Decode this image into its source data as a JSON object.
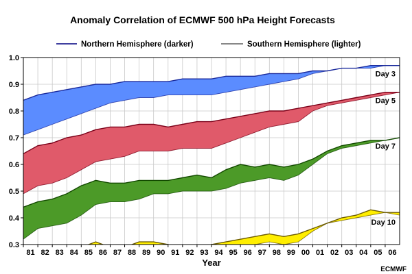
{
  "chart_data": {
    "type": "area",
    "title": "Anomaly Correlation of ECMWF 500 hPa Height Forecasts",
    "xlabel": "Year",
    "ylabel": "",
    "credit": "ECMWF",
    "legend": {
      "placement": "top",
      "entries": [
        {
          "label": "Northern Hemisphere (darker)",
          "color": "#000080"
        },
        {
          "label": "Southern Hemisphere (lighter)",
          "color": "#404040"
        }
      ]
    },
    "grid": true,
    "x_categories": [
      "81",
      "82",
      "83",
      "84",
      "85",
      "86",
      "87",
      "88",
      "89",
      "90",
      "91",
      "92",
      "93",
      "94",
      "95",
      "96",
      "97",
      "98",
      "99",
      "00",
      "01",
      "02",
      "03",
      "04",
      "05",
      "06"
    ],
    "xlim": [
      1981.0,
      2007.0
    ],
    "ylim": [
      0.3,
      1.0
    ],
    "yticks": [
      "0.3",
      "0.4",
      "0.5",
      "0.6",
      "0.7",
      "0.8",
      "0.9",
      "1.0"
    ],
    "series": [
      {
        "name": "Day 3",
        "fill": "#5b8cff",
        "edge": "#1a2a9c",
        "x": [
          1981.0,
          1982.0,
          1983.0,
          1984.0,
          1985.0,
          1986.0,
          1987.0,
          1988.0,
          1989.0,
          1990.0,
          1991.0,
          1992.0,
          1993.0,
          1994.0,
          1995.0,
          1996.0,
          1997.0,
          1998.0,
          1999.0,
          2000.0,
          2001.0,
          2002.0,
          2003.0,
          2004.0,
          2005.0,
          2006.0,
          2007.0
        ],
        "upper": [
          0.84,
          0.86,
          0.87,
          0.88,
          0.89,
          0.9,
          0.9,
          0.91,
          0.91,
          0.91,
          0.91,
          0.92,
          0.92,
          0.92,
          0.93,
          0.93,
          0.93,
          0.94,
          0.94,
          0.94,
          0.95,
          0.95,
          0.96,
          0.96,
          0.97,
          0.97,
          0.97
        ],
        "lower": [
          0.71,
          0.73,
          0.75,
          0.77,
          0.79,
          0.81,
          0.83,
          0.84,
          0.85,
          0.85,
          0.86,
          0.86,
          0.86,
          0.86,
          0.87,
          0.88,
          0.89,
          0.9,
          0.91,
          0.92,
          0.94,
          0.95,
          0.96,
          0.96,
          0.96,
          0.97,
          0.97
        ]
      },
      {
        "name": "Day 5",
        "fill": "#e05a6a",
        "edge": "#7a0018",
        "x": [
          1981.0,
          1982.0,
          1983.0,
          1984.0,
          1985.0,
          1986.0,
          1987.0,
          1988.0,
          1989.0,
          1990.0,
          1991.0,
          1992.0,
          1993.0,
          1994.0,
          1995.0,
          1996.0,
          1997.0,
          1998.0,
          1999.0,
          2000.0,
          2001.0,
          2002.0,
          2003.0,
          2004.0,
          2005.0,
          2006.0,
          2007.0
        ],
        "upper": [
          0.64,
          0.67,
          0.68,
          0.7,
          0.71,
          0.73,
          0.74,
          0.74,
          0.75,
          0.75,
          0.74,
          0.75,
          0.76,
          0.76,
          0.77,
          0.78,
          0.79,
          0.8,
          0.8,
          0.81,
          0.82,
          0.83,
          0.84,
          0.85,
          0.86,
          0.87,
          0.87
        ],
        "lower": [
          0.49,
          0.52,
          0.53,
          0.55,
          0.58,
          0.61,
          0.62,
          0.63,
          0.65,
          0.65,
          0.65,
          0.66,
          0.66,
          0.66,
          0.68,
          0.7,
          0.72,
          0.74,
          0.75,
          0.76,
          0.8,
          0.82,
          0.83,
          0.84,
          0.85,
          0.86,
          0.87
        ]
      },
      {
        "name": "Day 7",
        "fill": "#4c9a28",
        "edge": "#134a00",
        "x": [
          1981.0,
          1982.0,
          1983.0,
          1984.0,
          1985.0,
          1986.0,
          1987.0,
          1988.0,
          1989.0,
          1990.0,
          1991.0,
          1992.0,
          1993.0,
          1994.0,
          1995.0,
          1996.0,
          1997.0,
          1998.0,
          1999.0,
          2000.0,
          2001.0,
          2002.0,
          2003.0,
          2004.0,
          2005.0,
          2006.0,
          2007.0
        ],
        "upper": [
          0.44,
          0.46,
          0.47,
          0.49,
          0.52,
          0.54,
          0.53,
          0.53,
          0.54,
          0.54,
          0.54,
          0.55,
          0.56,
          0.55,
          0.58,
          0.6,
          0.59,
          0.6,
          0.59,
          0.6,
          0.62,
          0.65,
          0.67,
          0.68,
          0.69,
          0.69,
          0.7
        ],
        "lower": [
          0.32,
          0.36,
          0.37,
          0.38,
          0.41,
          0.45,
          0.46,
          0.46,
          0.47,
          0.49,
          0.49,
          0.5,
          0.5,
          0.5,
          0.51,
          0.53,
          0.54,
          0.55,
          0.54,
          0.56,
          0.6,
          0.64,
          0.66,
          0.67,
          0.68,
          0.69,
          0.7
        ]
      },
      {
        "name": "Day 10",
        "fill": "#ffee00",
        "edge": "#6b5a00",
        "x": [
          1981.0,
          1982.0,
          1983.0,
          1984.0,
          1985.0,
          1986.0,
          1987.0,
          1988.0,
          1989.0,
          1990.0,
          1991.0,
          1992.0,
          1993.0,
          1994.0,
          1995.0,
          1996.0,
          1997.0,
          1998.0,
          1999.0,
          2000.0,
          2001.0,
          2002.0,
          2003.0,
          2004.0,
          2005.0,
          2006.0,
          2007.0
        ],
        "upper": [
          0.28,
          0.29,
          0.29,
          0.29,
          0.29,
          0.31,
          0.29,
          0.29,
          0.31,
          0.31,
          0.3,
          0.29,
          0.29,
          0.3,
          0.31,
          0.32,
          0.33,
          0.34,
          0.33,
          0.34,
          0.36,
          0.38,
          0.4,
          0.41,
          0.43,
          0.42,
          0.42
        ],
        "lower": [
          0.26,
          0.26,
          0.27,
          0.27,
          0.27,
          0.28,
          0.27,
          0.27,
          0.28,
          0.28,
          0.28,
          0.27,
          0.27,
          0.28,
          0.29,
          0.29,
          0.3,
          0.31,
          0.3,
          0.31,
          0.35,
          0.38,
          0.39,
          0.4,
          0.41,
          0.42,
          0.41
        ]
      }
    ]
  }
}
